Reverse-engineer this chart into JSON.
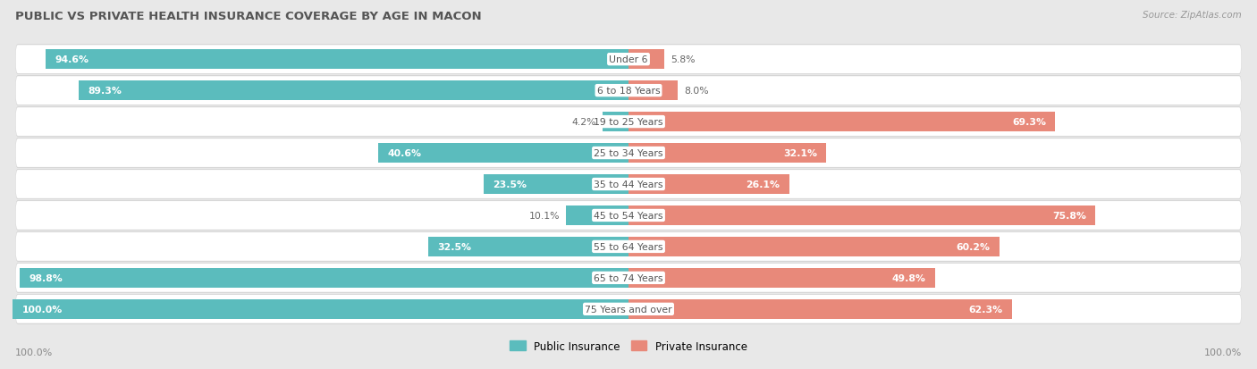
{
  "title": "PUBLIC VS PRIVATE HEALTH INSURANCE COVERAGE BY AGE IN MACON",
  "source": "Source: ZipAtlas.com",
  "categories": [
    "Under 6",
    "6 to 18 Years",
    "19 to 25 Years",
    "25 to 34 Years",
    "35 to 44 Years",
    "45 to 54 Years",
    "55 to 64 Years",
    "65 to 74 Years",
    "75 Years and over"
  ],
  "public": [
    94.6,
    89.3,
    4.2,
    40.6,
    23.5,
    10.1,
    32.5,
    98.8,
    100.0
  ],
  "private": [
    5.8,
    8.0,
    69.3,
    32.1,
    26.1,
    75.8,
    60.2,
    49.8,
    62.3
  ],
  "public_color": "#5bbcbd",
  "private_color": "#e8897a",
  "public_label": "Public Insurance",
  "private_label": "Private Insurance",
  "background_color": "#e8e8e8",
  "row_bg_color": "#ffffff",
  "bar_height": 0.62,
  "max_val": 100.0,
  "title_fontsize": 9.5,
  "label_fontsize": 7.8,
  "cat_fontsize": 7.8
}
